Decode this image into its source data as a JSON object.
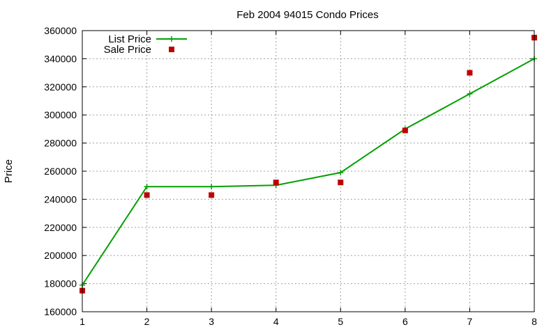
{
  "chart_data": {
    "type": "line",
    "title": "Feb 2004 94015 Condo Prices",
    "xlabel": "",
    "ylabel": "Price",
    "x": [
      1,
      2,
      3,
      4,
      5,
      6,
      7,
      8
    ],
    "xlim": [
      1,
      8
    ],
    "ylim": [
      160000,
      360000
    ],
    "xticks": [
      "1",
      "2",
      "3",
      "4",
      "5",
      "6",
      "7",
      "8"
    ],
    "yticks": [
      "160000",
      "180000",
      "200000",
      "220000",
      "240000",
      "260000",
      "280000",
      "300000",
      "320000",
      "340000",
      "360000"
    ],
    "grid": true,
    "legend_position": "top-left",
    "series": [
      {
        "name": "List Price",
        "style": "line-with-plus-markers",
        "color": "#00a000",
        "values": [
          179000,
          249000,
          249000,
          250000,
          259000,
          290000,
          315000,
          340000
        ]
      },
      {
        "name": "Sale Price",
        "style": "square-markers",
        "color": "#c00000",
        "values": [
          175000,
          243000,
          243000,
          252000,
          252000,
          289000,
          330000,
          355000
        ]
      }
    ]
  }
}
